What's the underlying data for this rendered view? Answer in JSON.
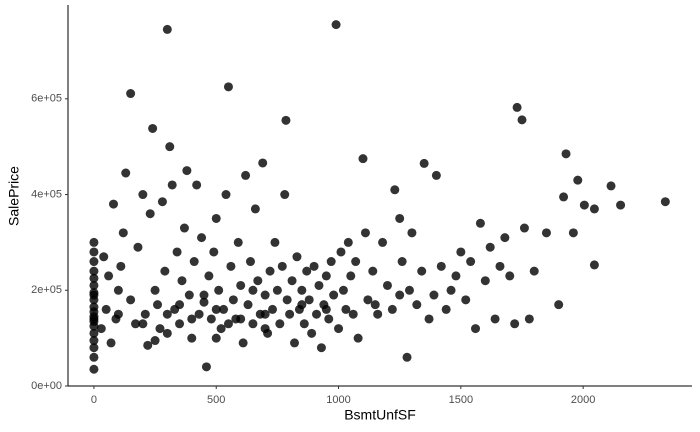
{
  "chart_data": {
    "type": "scatter",
    "xlabel": "BsmtUnfSF",
    "ylabel": "SalePrice",
    "color": "#000000",
    "opacity": 0.8,
    "xlim": [
      -106,
      2445
    ],
    "ylim": [
      0,
      796000
    ],
    "xticks": [
      0,
      500,
      1000,
      1500,
      2000
    ],
    "yticks": [
      {
        "value": 0,
        "label": "0e+00"
      },
      {
        "value": 200000,
        "label": "2e+05"
      },
      {
        "value": 400000,
        "label": "4e+05"
      },
      {
        "value": 600000,
        "label": "6e+05"
      }
    ],
    "grid": false,
    "x": [
      0,
      0,
      0,
      0,
      0,
      0,
      0,
      0,
      0,
      0,
      0,
      0,
      0,
      0,
      0,
      0,
      0,
      0,
      0,
      0,
      30,
      50,
      60,
      80,
      90,
      100,
      70,
      40,
      110,
      120,
      130,
      150,
      150,
      170,
      180,
      200,
      210,
      220,
      230,
      240,
      250,
      260,
      270,
      280,
      290,
      300,
      310,
      320,
      330,
      340,
      350,
      360,
      370,
      380,
      390,
      400,
      410,
      420,
      430,
      440,
      450,
      460,
      470,
      480,
      490,
      500,
      510,
      520,
      530,
      540,
      550,
      560,
      570,
      580,
      590,
      600,
      610,
      620,
      630,
      640,
      650,
      660,
      670,
      680,
      690,
      700,
      710,
      720,
      730,
      740,
      750,
      760,
      770,
      780,
      785,
      790,
      800,
      810,
      820,
      830,
      840,
      850,
      860,
      870,
      880,
      890,
      900,
      910,
      920,
      930,
      940,
      950,
      960,
      970,
      980,
      990,
      1000,
      1010,
      1020,
      1030,
      1040,
      1050,
      1060,
      1070,
      1080,
      1100,
      1110,
      1120,
      1140,
      1160,
      1180,
      1200,
      1220,
      1230,
      1250,
      1260,
      1280,
      1290,
      1300,
      1320,
      1340,
      1350,
      1370,
      1390,
      1400,
      1420,
      1440,
      1460,
      1480,
      1500,
      1520,
      1540,
      1560,
      1580,
      1600,
      1620,
      1640,
      1660,
      1680,
      1700,
      1720,
      1730,
      1750,
      1760,
      1780,
      1800,
      1850,
      1900,
      1920,
      1930,
      1960,
      1978,
      2005,
      2046,
      2046,
      2114,
      2153,
      2336,
      100,
      200,
      300,
      400,
      500,
      600,
      700,
      300,
      500,
      700,
      250,
      450,
      350,
      550,
      650,
      850,
      950,
      1150,
      1250
    ],
    "values": [
      35000,
      60000,
      80000,
      95000,
      110000,
      125000,
      135000,
      145000,
      155000,
      165000,
      180000,
      195000,
      210000,
      225000,
      240000,
      260000,
      280000,
      300000,
      190000,
      140000,
      120000,
      160000,
      230000,
      380000,
      140000,
      200000,
      90000,
      270000,
      250000,
      320000,
      445000,
      611000,
      180000,
      130000,
      290000,
      400000,
      150000,
      85000,
      360000,
      538000,
      200000,
      170000,
      120000,
      385000,
      240000,
      745000,
      500000,
      420000,
      160000,
      280000,
      130000,
      220000,
      330000,
      450000,
      190000,
      100000,
      260000,
      420000,
      150000,
      310000,
      175000,
      40000,
      230000,
      140000,
      280000,
      350000,
      200000,
      120000,
      160000,
      400000,
      625000,
      250000,
      180000,
      140000,
      300000,
      210000,
      90000,
      440000,
      170000,
      260000,
      130000,
      370000,
      220000,
      150000,
      466000,
      190000,
      110000,
      240000,
      160000,
      300000,
      200000,
      130000,
      250000,
      400000,
      555000,
      180000,
      150000,
      220000,
      90000,
      270000,
      160000,
      200000,
      130000,
      240000,
      180000,
      110000,
      250000,
      150000,
      210000,
      80000,
      170000,
      230000,
      140000,
      260000,
      190000,
      755000,
      120000,
      280000,
      200000,
      160000,
      300000,
      230000,
      150000,
      260000,
      100000,
      475000,
      320000,
      180000,
      240000,
      150000,
      300000,
      210000,
      160000,
      410000,
      350000,
      260000,
      60000,
      200000,
      320000,
      170000,
      240000,
      465000,
      140000,
      190000,
      440000,
      250000,
      160000,
      200000,
      230000,
      280000,
      180000,
      260000,
      120000,
      340000,
      220000,
      290000,
      140000,
      250000,
      310000,
      230000,
      130000,
      582000,
      556000,
      330000,
      140000,
      240000,
      320000,
      170000,
      395000,
      485000,
      320000,
      430000,
      378000,
      370000,
      253000,
      418000,
      378000,
      385000,
      150000,
      130000,
      150000,
      140000,
      160000,
      140000,
      150000,
      110000,
      100000,
      120000,
      95000,
      190000,
      170000,
      130000,
      200000,
      170000,
      160000,
      170000,
      190000
    ]
  }
}
